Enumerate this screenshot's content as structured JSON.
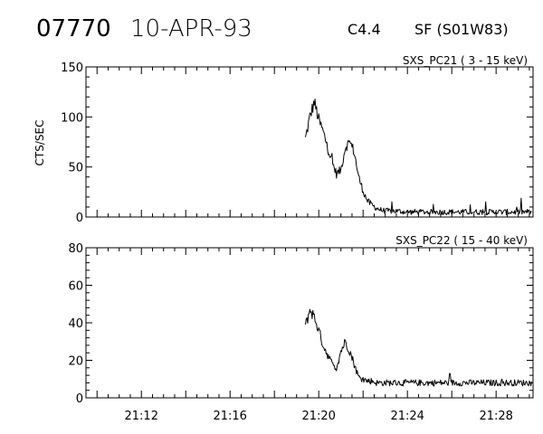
{
  "header": {
    "event_number": "07770",
    "date": "10-APR-93",
    "goes_class": "C4.4",
    "flare_location": "SF (S01W83)"
  },
  "colors": {
    "trace": "#000000",
    "axis": "#000000",
    "background": "#ffffff"
  },
  "chart_data": [
    {
      "type": "line",
      "title": "SXS_PC21  (  3 - 15 keV)",
      "xlabel": "",
      "ylabel": "CTS/SEC",
      "x_units": "UT (hh:mm)",
      "xlim": [
        "21:09:30",
        "21:29:40"
      ],
      "ylim": [
        0,
        150
      ],
      "yticks": [
        0,
        50,
        100,
        150
      ],
      "xtick_labels": [],
      "grid": false,
      "series": [
        {
          "x": [
            "21:19:24",
            "21:19:36",
            "21:19:48",
            "21:20:00",
            "21:20:12",
            "21:20:24",
            "21:20:36",
            "21:20:48",
            "21:21:00",
            "21:21:12",
            "21:21:24",
            "21:21:36",
            "21:21:48",
            "21:22:00",
            "21:22:12",
            "21:22:24",
            "21:22:36",
            "21:22:48",
            "21:23:00",
            "21:23:30",
            "21:24:00",
            "21:25:00",
            "21:26:00",
            "21:27:00",
            "21:28:00",
            "21:29:00",
            "21:29:36"
          ],
          "y": [
            78,
            100,
            115,
            97,
            85,
            70,
            55,
            43,
            47,
            70,
            75,
            65,
            40,
            26,
            16,
            12,
            9,
            7,
            6,
            6,
            5,
            5,
            5,
            5,
            5,
            5,
            5
          ]
        }
      ]
    },
    {
      "type": "line",
      "title": "SXS_PC22  ( 15 - 40 keV)",
      "xlabel": "",
      "ylabel": "",
      "x_units": "UT (hh:mm)",
      "xlim": [
        "21:09:30",
        "21:29:40"
      ],
      "ylim": [
        0,
        80
      ],
      "yticks": [
        0,
        20,
        40,
        60,
        80
      ],
      "xtick_labels": [
        "21:12",
        "21:16",
        "21:20",
        "21:24",
        "21:28"
      ],
      "grid": false,
      "series": [
        {
          "x": [
            "21:19:24",
            "21:19:36",
            "21:19:48",
            "21:20:00",
            "21:20:12",
            "21:20:24",
            "21:20:36",
            "21:20:48",
            "21:21:00",
            "21:21:12",
            "21:21:24",
            "21:21:36",
            "21:21:48",
            "21:22:00",
            "21:22:12",
            "21:22:24",
            "21:22:36",
            "21:22:48",
            "21:23:00",
            "21:23:30",
            "21:24:00",
            "21:25:00",
            "21:26:00",
            "21:27:00",
            "21:28:00",
            "21:29:00",
            "21:29:36"
          ],
          "y": [
            38,
            47,
            43,
            36,
            28,
            23,
            18,
            16,
            25,
            30,
            25,
            18,
            11,
            10,
            9,
            9,
            8,
            8,
            8,
            8,
            8,
            8,
            8,
            8,
            8,
            8,
            8
          ]
        }
      ]
    }
  ]
}
